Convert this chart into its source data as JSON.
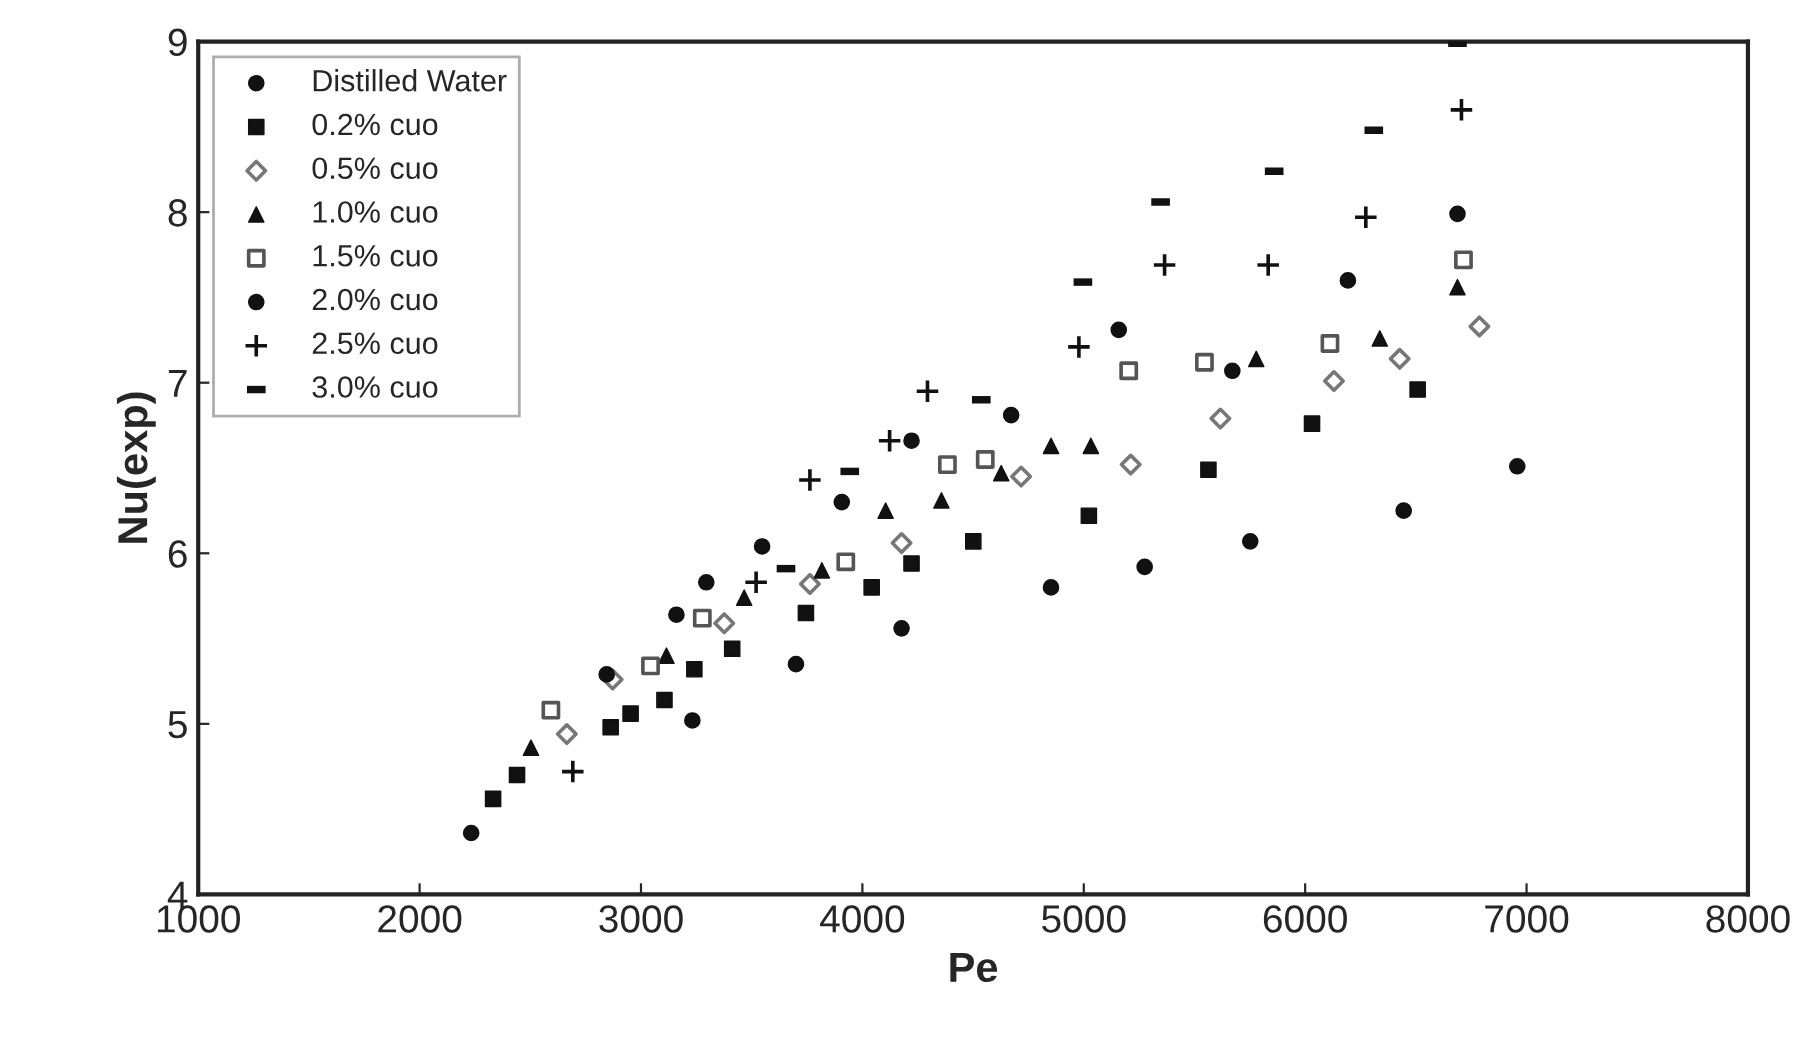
{
  "chart_data": {
    "type": "scatter",
    "xlabel": "Pe",
    "ylabel": "Nu(exp)",
    "xlim": [
      1000,
      8000
    ],
    "ylim": [
      4,
      9
    ],
    "xticks": [
      1000,
      2000,
      3000,
      4000,
      5000,
      6000,
      7000,
      8000
    ],
    "yticks": [
      4,
      5,
      6,
      7,
      8,
      9
    ],
    "grid": false,
    "legend": "top left",
    "series": [
      {
        "name": "Distilled Water",
        "color": "#111111",
        "marker": "circle",
        "x": [
          2233,
          3232,
          3700,
          4177,
          4852,
          5275,
          5752,
          6445,
          6958
        ],
        "values": [
          4.36,
          5.02,
          5.35,
          5.56,
          5.8,
          5.92,
          6.07,
          6.25,
          6.51
        ]
      },
      {
        "name": "0.2% cuo",
        "color": "#111111",
        "marker": "square",
        "x": [
          2332,
          2440,
          2863,
          2953,
          3106,
          3241,
          3412,
          3745,
          4042,
          4222,
          4501,
          5023,
          5563,
          6031,
          6508
        ],
        "values": [
          4.56,
          4.7,
          4.98,
          5.06,
          5.14,
          5.32,
          5.44,
          5.65,
          5.8,
          5.94,
          6.07,
          6.22,
          6.49,
          6.76,
          6.96
        ]
      },
      {
        "name": "0.5% cuo",
        "color": "#777777",
        "marker": "diamond",
        "x": [
          2665,
          2872,
          3376,
          3763,
          4177,
          4717,
          5212,
          5617,
          6130,
          6427,
          6787
        ],
        "values": [
          4.94,
          5.26,
          5.59,
          5.82,
          6.06,
          6.45,
          6.52,
          6.79,
          7.01,
          7.14,
          7.33
        ]
      },
      {
        "name": "1.0% cuo",
        "color": "#111111",
        "marker": "triangle",
        "x": [
          2503,
          3115,
          3466,
          3817,
          4105,
          4357,
          4627,
          4852,
          5032,
          5779,
          6337,
          6688
        ],
        "values": [
          4.86,
          5.4,
          5.74,
          5.9,
          6.25,
          6.31,
          6.47,
          6.63,
          6.63,
          7.14,
          7.26,
          7.56
        ]
      },
      {
        "name": "1.5% cuo",
        "color": "#555555",
        "marker": "square",
        "x": [
          2593,
          3043,
          3277,
          3925,
          4384,
          4555,
          5203,
          5545,
          6112,
          6715
        ],
        "values": [
          5.08,
          5.34,
          5.62,
          5.95,
          6.52,
          6.55,
          7.07,
          7.12,
          7.23,
          7.72
        ]
      },
      {
        "name": "2.0% cuo",
        "color": "#111111",
        "marker": "circle",
        "x": [
          2845,
          3160,
          3295,
          3547,
          3907,
          4222,
          4672,
          5158,
          5671,
          6193,
          6688
        ],
        "values": [
          5.29,
          5.64,
          5.83,
          6.04,
          6.3,
          6.66,
          6.81,
          7.31,
          7.07,
          7.6,
          7.99
        ]
      },
      {
        "name": "2.5% cuo",
        "color": "#111111",
        "marker": "cross",
        "x": [
          2692,
          3520,
          3763,
          4123,
          4294,
          4978,
          5365,
          5833,
          6274,
          6706
        ],
        "values": [
          4.72,
          5.83,
          6.43,
          6.66,
          6.95,
          7.21,
          7.69,
          7.69,
          7.97,
          8.6
        ]
      },
      {
        "name": "3.0% cuo",
        "color": "#111111",
        "x": [
          3655,
          3943,
          4537,
          4996,
          5347,
          5860,
          6310,
          6688
        ],
        "values": [
          5.91,
          6.48,
          6.9,
          7.59,
          8.06,
          8.24,
          8.48,
          8.99
        ]
      }
    ]
  }
}
